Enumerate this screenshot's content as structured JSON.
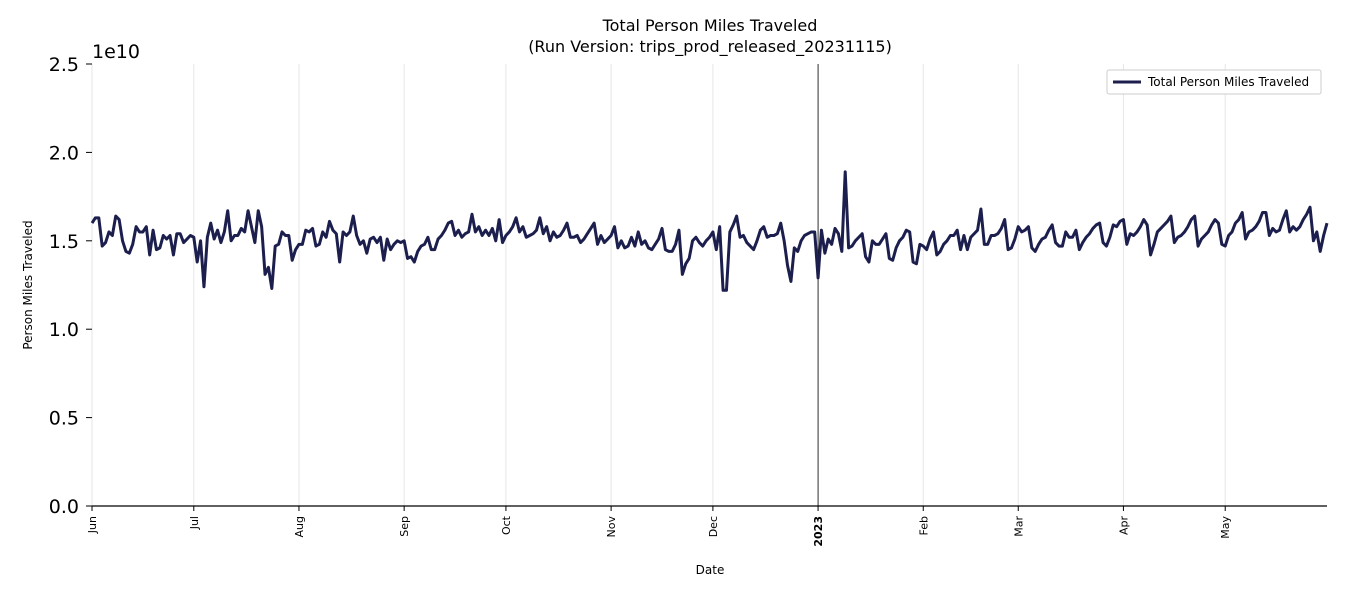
{
  "chart_data": {
    "type": "line",
    "title": "Total Person Miles Traveled",
    "subtitle": "(Run Version: trips_prod_released_20231115)",
    "xlabel": "Date",
    "ylabel": "Person Miles Traveled",
    "y_exponent_label": "1e10",
    "ylim": [
      0,
      2.5
    ],
    "y_multiplier": 10000000000,
    "y_ticks": [
      0.0,
      0.5,
      1.0,
      1.5,
      2.0,
      2.5
    ],
    "y_tick_labels": [
      "0.0",
      "0.5",
      "1.0",
      "1.5",
      "2.0",
      "2.5"
    ],
    "xlim": [
      "2022-06-01",
      "2023-05-31"
    ],
    "x_ticks": [
      {
        "date": "2022-06-01",
        "label": "Jun",
        "bold": false
      },
      {
        "date": "2022-07-01",
        "label": "Jul",
        "bold": false
      },
      {
        "date": "2022-08-01",
        "label": "Aug",
        "bold": false
      },
      {
        "date": "2022-09-01",
        "label": "Sep",
        "bold": false
      },
      {
        "date": "2022-10-01",
        "label": "Oct",
        "bold": false
      },
      {
        "date": "2022-11-01",
        "label": "Nov",
        "bold": false
      },
      {
        "date": "2022-12-01",
        "label": "Dec",
        "bold": false
      },
      {
        "date": "2023-01-01",
        "label": "2023",
        "bold": true
      },
      {
        "date": "2023-02-01",
        "label": "Feb",
        "bold": false
      },
      {
        "date": "2023-03-01",
        "label": "Mar",
        "bold": false
      },
      {
        "date": "2023-04-01",
        "label": "Apr",
        "bold": false
      },
      {
        "date": "2023-05-01",
        "label": "May",
        "bold": false
      }
    ],
    "vertical_marker_date": "2023-01-01",
    "grid": "vertical",
    "legend": "top-right",
    "series": [
      {
        "name": "Total Person Miles Traveled",
        "color": "#1c1f4d",
        "start_date": "2022-06-01",
        "step": "1 day",
        "values": [
          1.6,
          1.63,
          1.63,
          1.47,
          1.49,
          1.55,
          1.53,
          1.64,
          1.62,
          1.5,
          1.44,
          1.43,
          1.48,
          1.58,
          1.55,
          1.55,
          1.58,
          1.42,
          1.56,
          1.45,
          1.46,
          1.53,
          1.51,
          1.53,
          1.42,
          1.54,
          1.54,
          1.49,
          1.51,
          1.53,
          1.52,
          1.38,
          1.5,
          1.24,
          1.52,
          1.6,
          1.51,
          1.56,
          1.49,
          1.55,
          1.67,
          1.5,
          1.53,
          1.53,
          1.57,
          1.55,
          1.67,
          1.58,
          1.49,
          1.67,
          1.58,
          1.31,
          1.35,
          1.23,
          1.47,
          1.48,
          1.55,
          1.53,
          1.53,
          1.39,
          1.45,
          1.48,
          1.48,
          1.56,
          1.55,
          1.57,
          1.47,
          1.48,
          1.55,
          1.52,
          1.61,
          1.56,
          1.54,
          1.38,
          1.55,
          1.53,
          1.55,
          1.64,
          1.53,
          1.48,
          1.5,
          1.43,
          1.51,
          1.52,
          1.49,
          1.52,
          1.39,
          1.51,
          1.45,
          1.48,
          1.5,
          1.49,
          1.5,
          1.4,
          1.41,
          1.38,
          1.44,
          1.47,
          1.48,
          1.52,
          1.45,
          1.45,
          1.51,
          1.53,
          1.56,
          1.6,
          1.61,
          1.53,
          1.56,
          1.52,
          1.54,
          1.55,
          1.65,
          1.55,
          1.58,
          1.53,
          1.56,
          1.53,
          1.57,
          1.5,
          1.62,
          1.49,
          1.53,
          1.55,
          1.58,
          1.63,
          1.55,
          1.58,
          1.52,
          1.53,
          1.54,
          1.56,
          1.63,
          1.54,
          1.58,
          1.5,
          1.55,
          1.52,
          1.53,
          1.56,
          1.6,
          1.52,
          1.52,
          1.53,
          1.49,
          1.51,
          1.54,
          1.57,
          1.6,
          1.48,
          1.53,
          1.49,
          1.51,
          1.53,
          1.58,
          1.46,
          1.5,
          1.46,
          1.47,
          1.52,
          1.47,
          1.55,
          1.48,
          1.5,
          1.46,
          1.45,
          1.48,
          1.51,
          1.57,
          1.45,
          1.44,
          1.44,
          1.48,
          1.56,
          1.31,
          1.37,
          1.4,
          1.5,
          1.52,
          1.49,
          1.47,
          1.5,
          1.52,
          1.55,
          1.45,
          1.58,
          1.22,
          1.22,
          1.55,
          1.59,
          1.64,
          1.52,
          1.53,
          1.49,
          1.47,
          1.45,
          1.5,
          1.56,
          1.58,
          1.52,
          1.53,
          1.53,
          1.54,
          1.6,
          1.5,
          1.36,
          1.27,
          1.46,
          1.44,
          1.5,
          1.53,
          1.54,
          1.55,
          1.55,
          1.29,
          1.56,
          1.43,
          1.51,
          1.48,
          1.57,
          1.54,
          1.44,
          1.89,
          1.46,
          1.47,
          1.5,
          1.52,
          1.54,
          1.41,
          1.38,
          1.5,
          1.48,
          1.48,
          1.51,
          1.54,
          1.4,
          1.39,
          1.46,
          1.5,
          1.52,
          1.56,
          1.55,
          1.38,
          1.37,
          1.48,
          1.47,
          1.45,
          1.51,
          1.55,
          1.42,
          1.44,
          1.48,
          1.5,
          1.53,
          1.53,
          1.56,
          1.45,
          1.53,
          1.45,
          1.52,
          1.54,
          1.56,
          1.68,
          1.48,
          1.48,
          1.53,
          1.53,
          1.54,
          1.57,
          1.62,
          1.45,
          1.46,
          1.51,
          1.58,
          1.55,
          1.56,
          1.58,
          1.46,
          1.44,
          1.48,
          1.51,
          1.52,
          1.56,
          1.59,
          1.49,
          1.47,
          1.47,
          1.55,
          1.52,
          1.52,
          1.56,
          1.45,
          1.49,
          1.52,
          1.54,
          1.57,
          1.59,
          1.6,
          1.49,
          1.47,
          1.52,
          1.59,
          1.58,
          1.61,
          1.62,
          1.48,
          1.54,
          1.53,
          1.55,
          1.58,
          1.62,
          1.59,
          1.42,
          1.48,
          1.55,
          1.57,
          1.59,
          1.61,
          1.64,
          1.49,
          1.52,
          1.53,
          1.55,
          1.58,
          1.62,
          1.64,
          1.47,
          1.51,
          1.53,
          1.55,
          1.59,
          1.62,
          1.6,
          1.48,
          1.47,
          1.53,
          1.55,
          1.6,
          1.62,
          1.66,
          1.51,
          1.55,
          1.56,
          1.58,
          1.61,
          1.66,
          1.66,
          1.53,
          1.57,
          1.55,
          1.56,
          1.62,
          1.67,
          1.55,
          1.58,
          1.56,
          1.58,
          1.62,
          1.65,
          1.69,
          1.5,
          1.55,
          1.44,
          1.53,
          1.6
        ]
      }
    ]
  }
}
